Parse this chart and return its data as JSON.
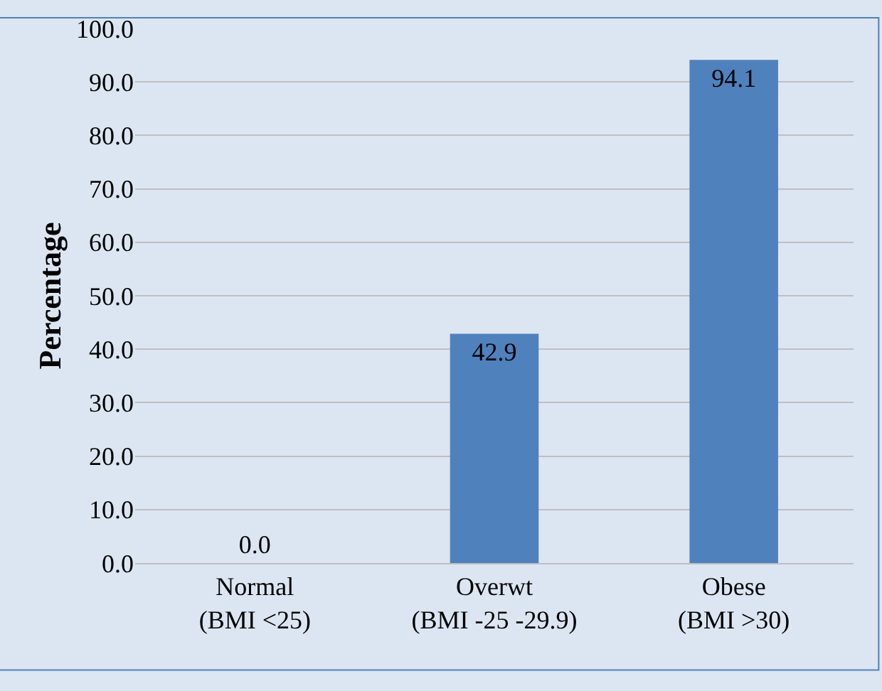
{
  "chart_data": {
    "type": "bar",
    "ylabel": "Percentage",
    "categories": [
      "Normal\n(BMI <25)",
      "Overwt\n(BMI -25 -29.9)",
      "Obese\n(BMI >30)"
    ],
    "values": [
      0.0,
      42.9,
      94.1
    ],
    "value_labels": [
      "0.0",
      "42.9",
      "94.1"
    ],
    "color": "#4f81bd",
    "ylim": [
      0,
      100
    ],
    "yticks": [
      {
        "value": 0,
        "label": "0.0"
      },
      {
        "value": 10,
        "label": "10.0"
      },
      {
        "value": 20,
        "label": "20.0"
      },
      {
        "value": 30,
        "label": "30.0"
      },
      {
        "value": 40,
        "label": "40.0"
      },
      {
        "value": 50,
        "label": "50.0"
      },
      {
        "value": 60,
        "label": "60.0"
      },
      {
        "value": 70,
        "label": "70.0"
      },
      {
        "value": 80,
        "label": "80.0"
      },
      {
        "value": 90,
        "label": "90.0"
      },
      {
        "value": 100,
        "label": "100.0"
      }
    ],
    "grid": "y"
  }
}
